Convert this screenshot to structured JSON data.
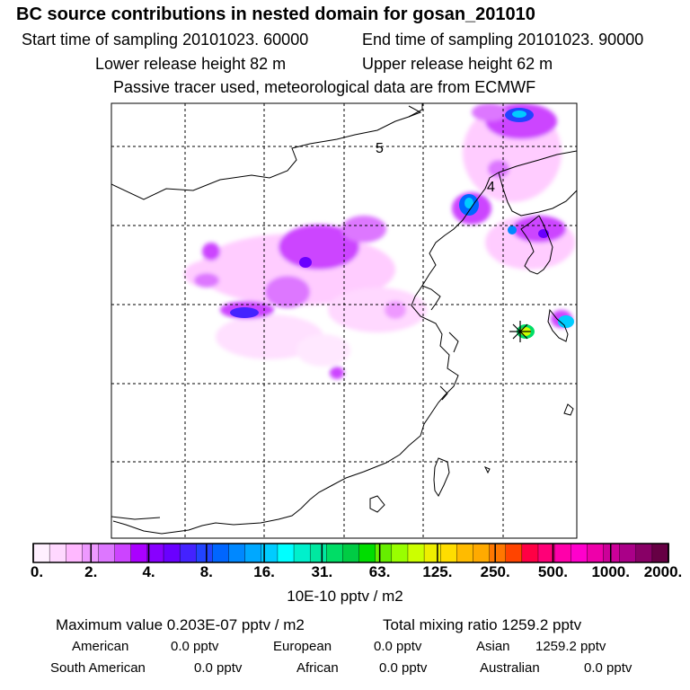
{
  "header": {
    "title": "BC  source contributions in nested domain for gosan_201010",
    "start_time": "Start time of sampling 20101023. 60000",
    "end_time": "End time of sampling 20101023. 90000",
    "lower_height": "Lower release height   82 m",
    "upper_height": "Upper release height   62 m",
    "tracer_note": "Passive tracer used, meteorological data are from ECMWF"
  },
  "map": {
    "contour_labels": [
      "5",
      "4"
    ],
    "receptor_marker": "star-marker"
  },
  "colorbar": {
    "tick_labels": [
      "0.",
      "2.",
      "4.",
      "8.",
      "16.",
      "31.",
      "63.",
      "125.",
      "250.",
      "500.",
      "1000.",
      "2000."
    ],
    "unit": "10E-10 pptv / m2",
    "colors": [
      "#fff0ff",
      "#ffd8ff",
      "#ffb8ff",
      "#ee99ff",
      "#dd77ff",
      "#cc44ff",
      "#aa00ff",
      "#8800ff",
      "#6a00ff",
      "#4422ff",
      "#2244ff",
      "#0066ff",
      "#0088ff",
      "#00a8ff",
      "#00ccff",
      "#00ffff",
      "#00f0cc",
      "#00e8a0",
      "#00dd66",
      "#00cc44",
      "#00dd00",
      "#66ee00",
      "#99ff00",
      "#ccff00",
      "#eeee00",
      "#ffdd00",
      "#ffbb00",
      "#ffaa00",
      "#ff7700",
      "#ff4400",
      "#ff0044",
      "#ff0077",
      "#ff00aa",
      "#ff00cc",
      "#ee00aa",
      "#cc0099",
      "#aa0088",
      "#880066",
      "#660044"
    ]
  },
  "summary": {
    "max_label": "Maximum value  0.203E-07 pptv / m2",
    "total_label": "Total mixing ratio     1259.2 pptv",
    "regions": [
      {
        "name": "American",
        "value": "0.0 pptv"
      },
      {
        "name": "European",
        "value": "0.0 pptv"
      },
      {
        "name": "Asian",
        "value": "1259.2 pptv"
      },
      {
        "name": "South American",
        "value": "0.0 pptv"
      },
      {
        "name": "African",
        "value": "0.0 pptv"
      },
      {
        "name": "Australian",
        "value": "0.0 pptv"
      }
    ]
  }
}
